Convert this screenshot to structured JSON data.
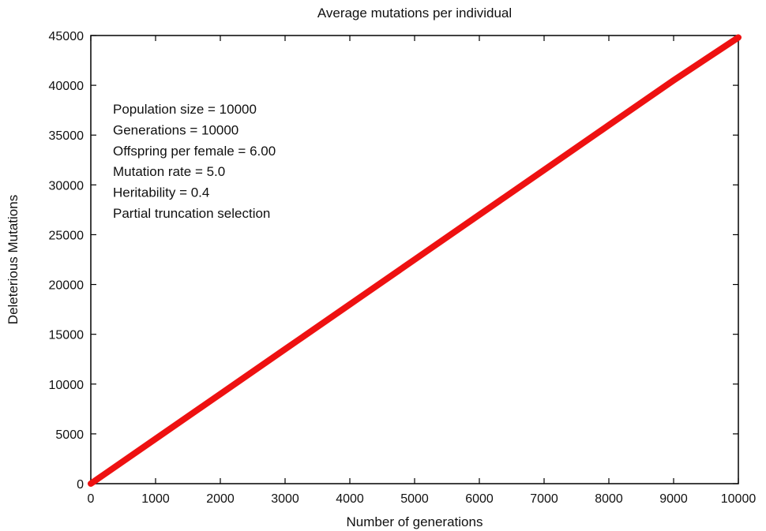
{
  "chart_data": {
    "type": "line",
    "title": "Average mutations per individual",
    "xlabel": "Number of generations",
    "ylabel": "Deleterious Mutations",
    "xlim": [
      0,
      10000
    ],
    "ylim": [
      0,
      45000
    ],
    "xticks": [
      0,
      1000,
      2000,
      3000,
      4000,
      5000,
      6000,
      7000,
      8000,
      9000,
      10000
    ],
    "yticks": [
      0,
      5000,
      10000,
      15000,
      20000,
      25000,
      30000,
      35000,
      40000,
      45000
    ],
    "grid": false,
    "series": [
      {
        "color": "#ee1111",
        "x": [
          0,
          1000,
          2000,
          3000,
          4000,
          5000,
          6000,
          7000,
          8000,
          9000,
          10000
        ],
        "y": [
          0,
          4500,
          9000,
          13500,
          18000,
          22500,
          27000,
          31500,
          36000,
          40500,
          44800
        ]
      }
    ],
    "annotations": [
      "Population size = 10000",
      "Generations = 10000",
      "Offspring per female = 6.00",
      "Mutation rate = 5.0",
      "Heritability = 0.4",
      "Partial truncation selection"
    ]
  }
}
